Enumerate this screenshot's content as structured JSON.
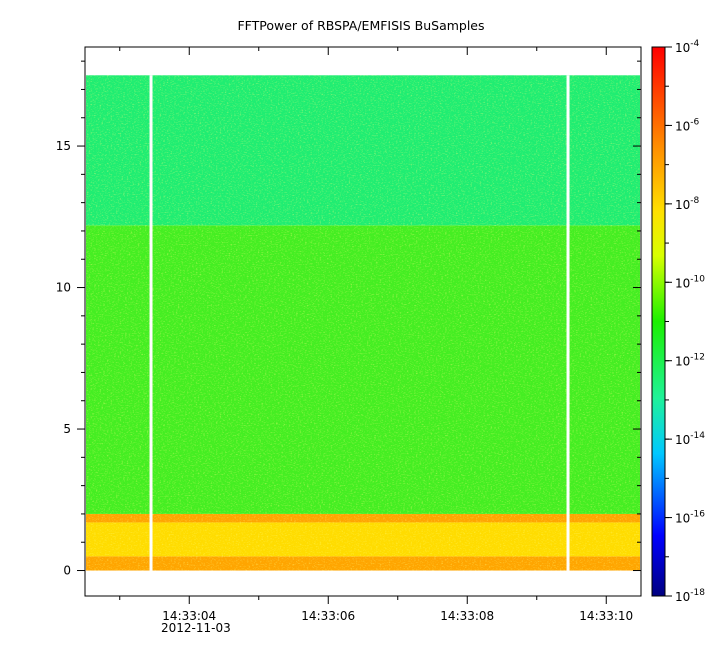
{
  "chart_data": {
    "type": "heatmap",
    "title": "FFTPower of RBSPA/EMFISIS  BuSamples",
    "xlabel": "",
    "ylabel": "",
    "x": {
      "tick_labels": [
        "14:33:04",
        "14:33:06",
        "14:33:08",
        "14:33:10"
      ],
      "tick_values_s": [
        4,
        6,
        8,
        10
      ],
      "minor_tick_values_s": [
        3,
        5,
        7,
        9
      ],
      "range_s": [
        2.5,
        10.5
      ],
      "date_label": "2012-11-03"
    },
    "y": {
      "tick_labels": [
        "0",
        "5",
        "10",
        "15"
      ],
      "tick_values": [
        0,
        5,
        10,
        15
      ],
      "range": [
        -0.9,
        18.5
      ]
    },
    "colorbar": {
      "scale": "log",
      "range": [
        1e-18,
        0.0001
      ],
      "tick_exponents": [
        "-4",
        "-6",
        "-8",
        "-10",
        "-12",
        "-14",
        "-16",
        "-18"
      ],
      "tick_base": "10"
    },
    "data_extent": {
      "y": [
        0,
        17.5
      ]
    },
    "gaps_s": [
      3.45,
      9.45
    ],
    "bands": [
      {
        "y": [
          0,
          0.5
        ],
        "level_exp": -7.9,
        "color": "#ffa500"
      },
      {
        "y": [
          0.5,
          1.7
        ],
        "level_exp": -8.3,
        "color": "#ffdc00"
      },
      {
        "y": [
          1.7,
          2.0
        ],
        "level_exp": -7.9,
        "color": "#ffa500"
      },
      {
        "y": [
          2.0,
          12.2
        ],
        "level_exp": -10.0,
        "color": "#44ee22"
      },
      {
        "y": [
          12.2,
          17.5
        ],
        "level_exp": -11.3,
        "color": "#1fed72"
      }
    ],
    "grid": false,
    "legend": "colorbar right"
  }
}
